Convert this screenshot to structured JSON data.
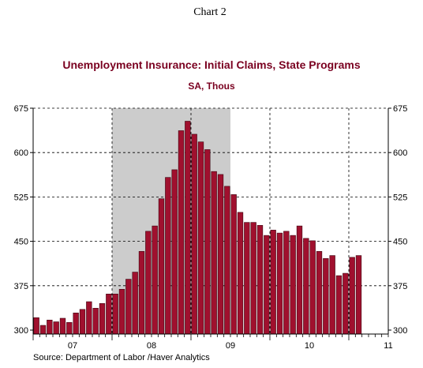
{
  "header": {
    "chart_number": "Chart 2"
  },
  "chart_data": {
    "type": "bar",
    "title": "Unemployment Insurance: Initial Claims, State Programs",
    "subtitle": "SA, Thous",
    "source": "Source:  Department of Labor /Haver Analytics",
    "ylim": [
      300,
      675
    ],
    "yticks": [
      300,
      375,
      450,
      525,
      600,
      675
    ],
    "ytick_labels": [
      "300",
      "375",
      "450",
      "525",
      "600",
      "675"
    ],
    "year_labels": [
      "07",
      "08",
      "09",
      "10",
      "11"
    ],
    "x_start": "2007-01",
    "months_total": 54,
    "recession": {
      "start": "2008-01",
      "end": "2009-06"
    },
    "grid": true,
    "colors": {
      "bar": "#a0102e",
      "bar_edge": "#3d0510",
      "recession": "#cccccc",
      "title": "#7a0020",
      "grid": "#000000"
    },
    "values": [
      321,
      308,
      317,
      314,
      320,
      313,
      329,
      335,
      348,
      337,
      345,
      361,
      361,
      369,
      386,
      398,
      433,
      467,
      476,
      522,
      558,
      571,
      637,
      653,
      631,
      618,
      605,
      568,
      563,
      543,
      529,
      499,
      482,
      482,
      477,
      460,
      469,
      464,
      467,
      460,
      476,
      455,
      451,
      433,
      421,
      426,
      392,
      396,
      423,
      426
    ]
  }
}
